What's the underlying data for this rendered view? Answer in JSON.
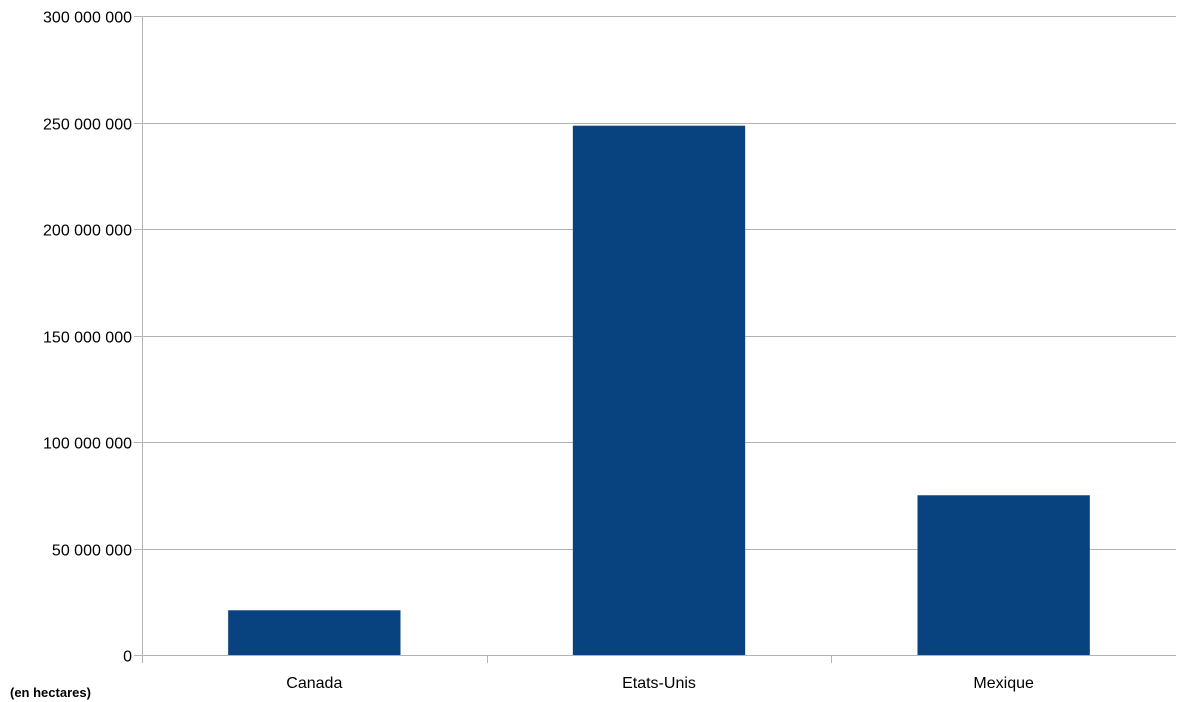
{
  "chart_data": {
    "type": "bar",
    "categories": [
      "Canada",
      "Etats-Unis",
      "Mexique"
    ],
    "values": [
      21000000,
      248500000,
      75000000
    ],
    "ylim": [
      0,
      300000000
    ],
    "yticks": [
      0,
      50000000,
      100000000,
      150000000,
      200000000,
      250000000,
      300000000
    ],
    "ytick_labels": [
      "0",
      "50 000 000",
      "100 000 000",
      "150 000 000",
      "200 000 000",
      "250 000 000",
      "300 000 000"
    ],
    "unit_note": "(en hectares)",
    "grid": true,
    "bar_color": "#08437f",
    "grid_color": "#b3b3b3",
    "axis_color": "#b3b3b3"
  }
}
